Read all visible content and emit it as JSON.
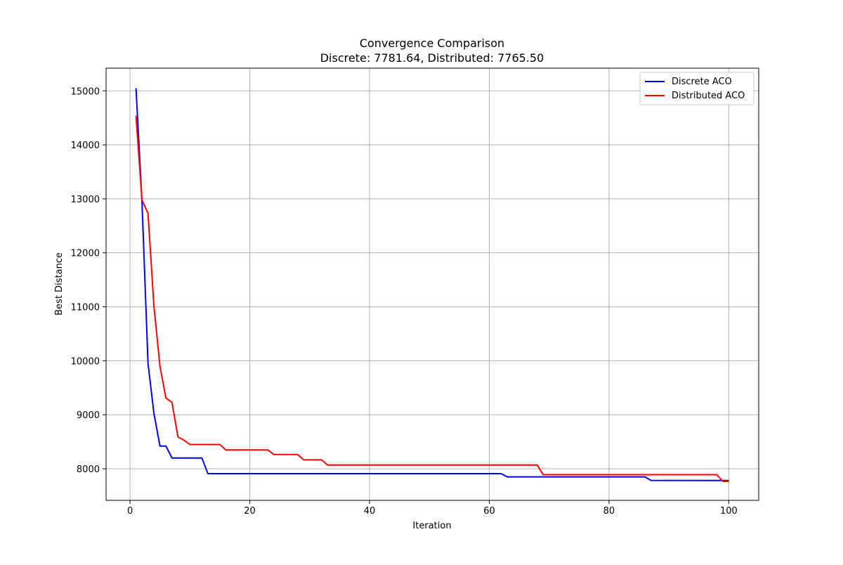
{
  "chart_data": {
    "type": "line",
    "title": "Convergence Comparison",
    "subtitle": "Discrete: 7781.64, Distributed: 7765.50",
    "xlabel": "Iteration",
    "ylabel": "Best Distance",
    "xlim": [
      -4,
      105
    ],
    "ylim": [
      7415,
      15420
    ],
    "xticks": [
      0,
      20,
      40,
      60,
      80,
      100
    ],
    "yticks": [
      8000,
      9000,
      10000,
      11000,
      12000,
      13000,
      14000,
      15000
    ],
    "grid": true,
    "legend_position": "top-right",
    "series": [
      {
        "name": "Discrete ACO",
        "color": "#0000ff",
        "points": [
          [
            1,
            15050
          ],
          [
            2,
            12950
          ],
          [
            3,
            9950
          ],
          [
            4,
            9020
          ],
          [
            5,
            8420
          ],
          [
            6,
            8420
          ],
          [
            7,
            8200
          ],
          [
            12,
            8200
          ],
          [
            13,
            7910
          ],
          [
            62,
            7910
          ],
          [
            63,
            7850
          ],
          [
            86,
            7850
          ],
          [
            87,
            7785
          ],
          [
            100,
            7782
          ]
        ]
      },
      {
        "name": "Distributed ACO",
        "color": "#ff0000",
        "points": [
          [
            1,
            14540
          ],
          [
            2,
            12980
          ],
          [
            3,
            12730
          ],
          [
            4,
            11000
          ],
          [
            5,
            9900
          ],
          [
            6,
            9310
          ],
          [
            7,
            9230
          ],
          [
            8,
            8590
          ],
          [
            9,
            8530
          ],
          [
            10,
            8450
          ],
          [
            15,
            8450
          ],
          [
            16,
            8350
          ],
          [
            23,
            8350
          ],
          [
            24,
            8265
          ],
          [
            28,
            8265
          ],
          [
            29,
            8165
          ],
          [
            32,
            8165
          ],
          [
            33,
            8070
          ],
          [
            68,
            8070
          ],
          [
            69,
            7890
          ],
          [
            98,
            7890
          ],
          [
            99,
            7766
          ],
          [
            100,
            7766
          ]
        ]
      }
    ]
  }
}
